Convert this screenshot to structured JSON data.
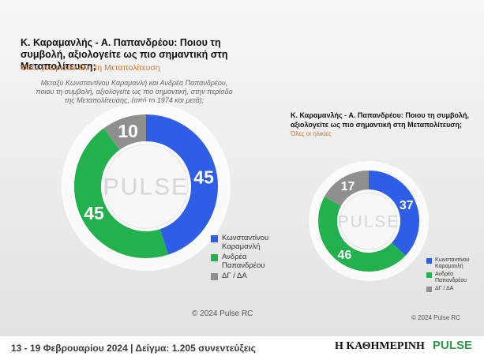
{
  "left_panel": {
    "title": "Κ. Καραμανλής - Α. Παπανδρέου: Ποιου τη συμβολή, αξιολογείτε ως πιο σημαντική στη Μεταπολίτευση;",
    "subtitle": "Όσοι γνώρισαν όλη τη Μεταπολίτευση",
    "question": "Μεταξύ Κωνσταντίνου Καραμανλή και Ανδρέα Παπανδρέου, ποιου τη συμβολή, αξιολογείτε ως πιο σημαντική, στην περίοδο της Μεταπολίτευσης, (από το 1974 και μετά);",
    "watermark": "PULSE",
    "copyright": "© 2024 Pulse RC"
  },
  "right_panel": {
    "title": "Κ. Καραμανλής - Α. Παπανδρέου: Ποιου τη συμβολή, αξιολογείτε ως πιο σημαντική στη Μεταπολίτευση;",
    "subtitle": "Όλες οι ηλικίες",
    "watermark": "PULSE",
    "copyright": "© 2024 Pulse RC"
  },
  "legend": [
    {
      "label": "Κωνσταντίνου\nΚαραμανλή",
      "color": "#2f5ee6"
    },
    {
      "label": "Ανδρέα\nΠαπανδρέου",
      "color": "#22b14c"
    },
    {
      "label": "ΔΓ / ΔΑ",
      "color": "#8f8f8f"
    }
  ],
  "footer": {
    "text": "13 - 19  Φεβρουαρίου  2024  |  Δείγμα:  1.205 συνεντεύξεις",
    "brand1": "Η ΚΑΘΗΜΕΡΙΝΗ",
    "brand2": "PULSE"
  },
  "chart_data": [
    {
      "type": "pie",
      "variant": "donut",
      "title": "Κ. Καραμανλής - Α. Παπανδρέου: Ποιου τη συμβολή, αξιολογείτε ως πιο σημαντική στη Μεταπολίτευση;",
      "subtitle": "Όσοι γνώρισαν όλη τη Μεταπολίτευση",
      "categories": [
        "Κωνσταντίνου Καραμανλή",
        "Ανδρέα Παπανδρέου",
        "ΔΓ / ΔΑ"
      ],
      "values": [
        45,
        45,
        10
      ],
      "colors": [
        "#2f5ee6",
        "#22b14c",
        "#8f8f8f"
      ]
    },
    {
      "type": "pie",
      "variant": "donut",
      "title": "Κ. Καραμανλής - Α. Παπανδρέου: Ποιου τη συμβολή, αξιολογείτε ως πιο σημαντική στη Μεταπολίτευση;",
      "subtitle": "Όλες οι ηλικίες",
      "categories": [
        "Κωνσταντίνου Καραμανλή",
        "Ανδρέα Παπανδρέου",
        "ΔΓ / ΔΑ"
      ],
      "values": [
        37,
        46,
        17
      ],
      "colors": [
        "#2f5ee6",
        "#22b14c",
        "#8f8f8f"
      ]
    }
  ]
}
